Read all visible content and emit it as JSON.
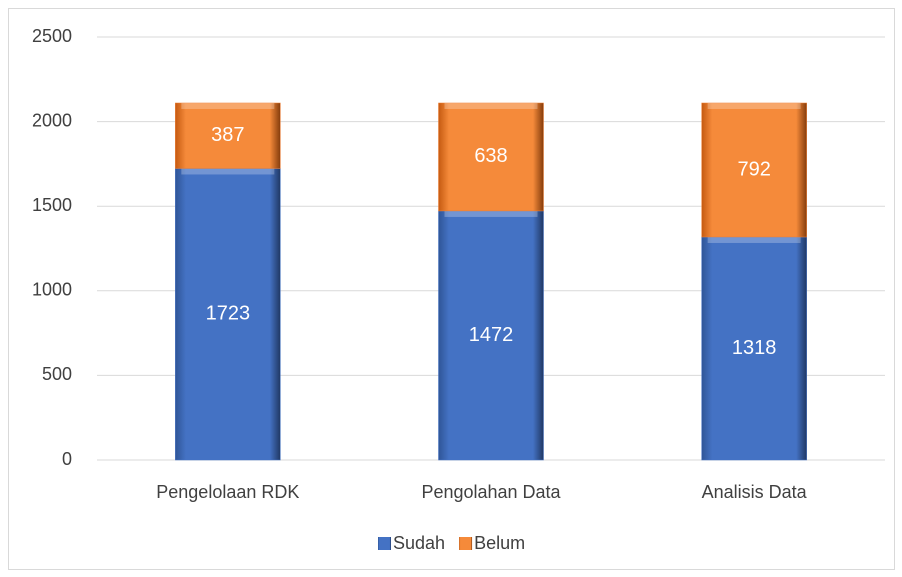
{
  "chart_data": {
    "type": "bar",
    "stacked": true,
    "categories": [
      "Pengelolaan RDK",
      "Pengolahan Data",
      "Analisis Data"
    ],
    "series": [
      {
        "name": "Sudah",
        "color": "#4472c4",
        "values": [
          1723,
          1472,
          1318
        ]
      },
      {
        "name": "Belum",
        "color": "#ed7d31",
        "values": [
          387,
          638,
          792
        ]
      }
    ],
    "ylim": [
      0,
      2500
    ],
    "yticks": [
      0,
      500,
      1000,
      1500,
      2000,
      2500
    ],
    "grid": true,
    "legend": "bottom"
  }
}
